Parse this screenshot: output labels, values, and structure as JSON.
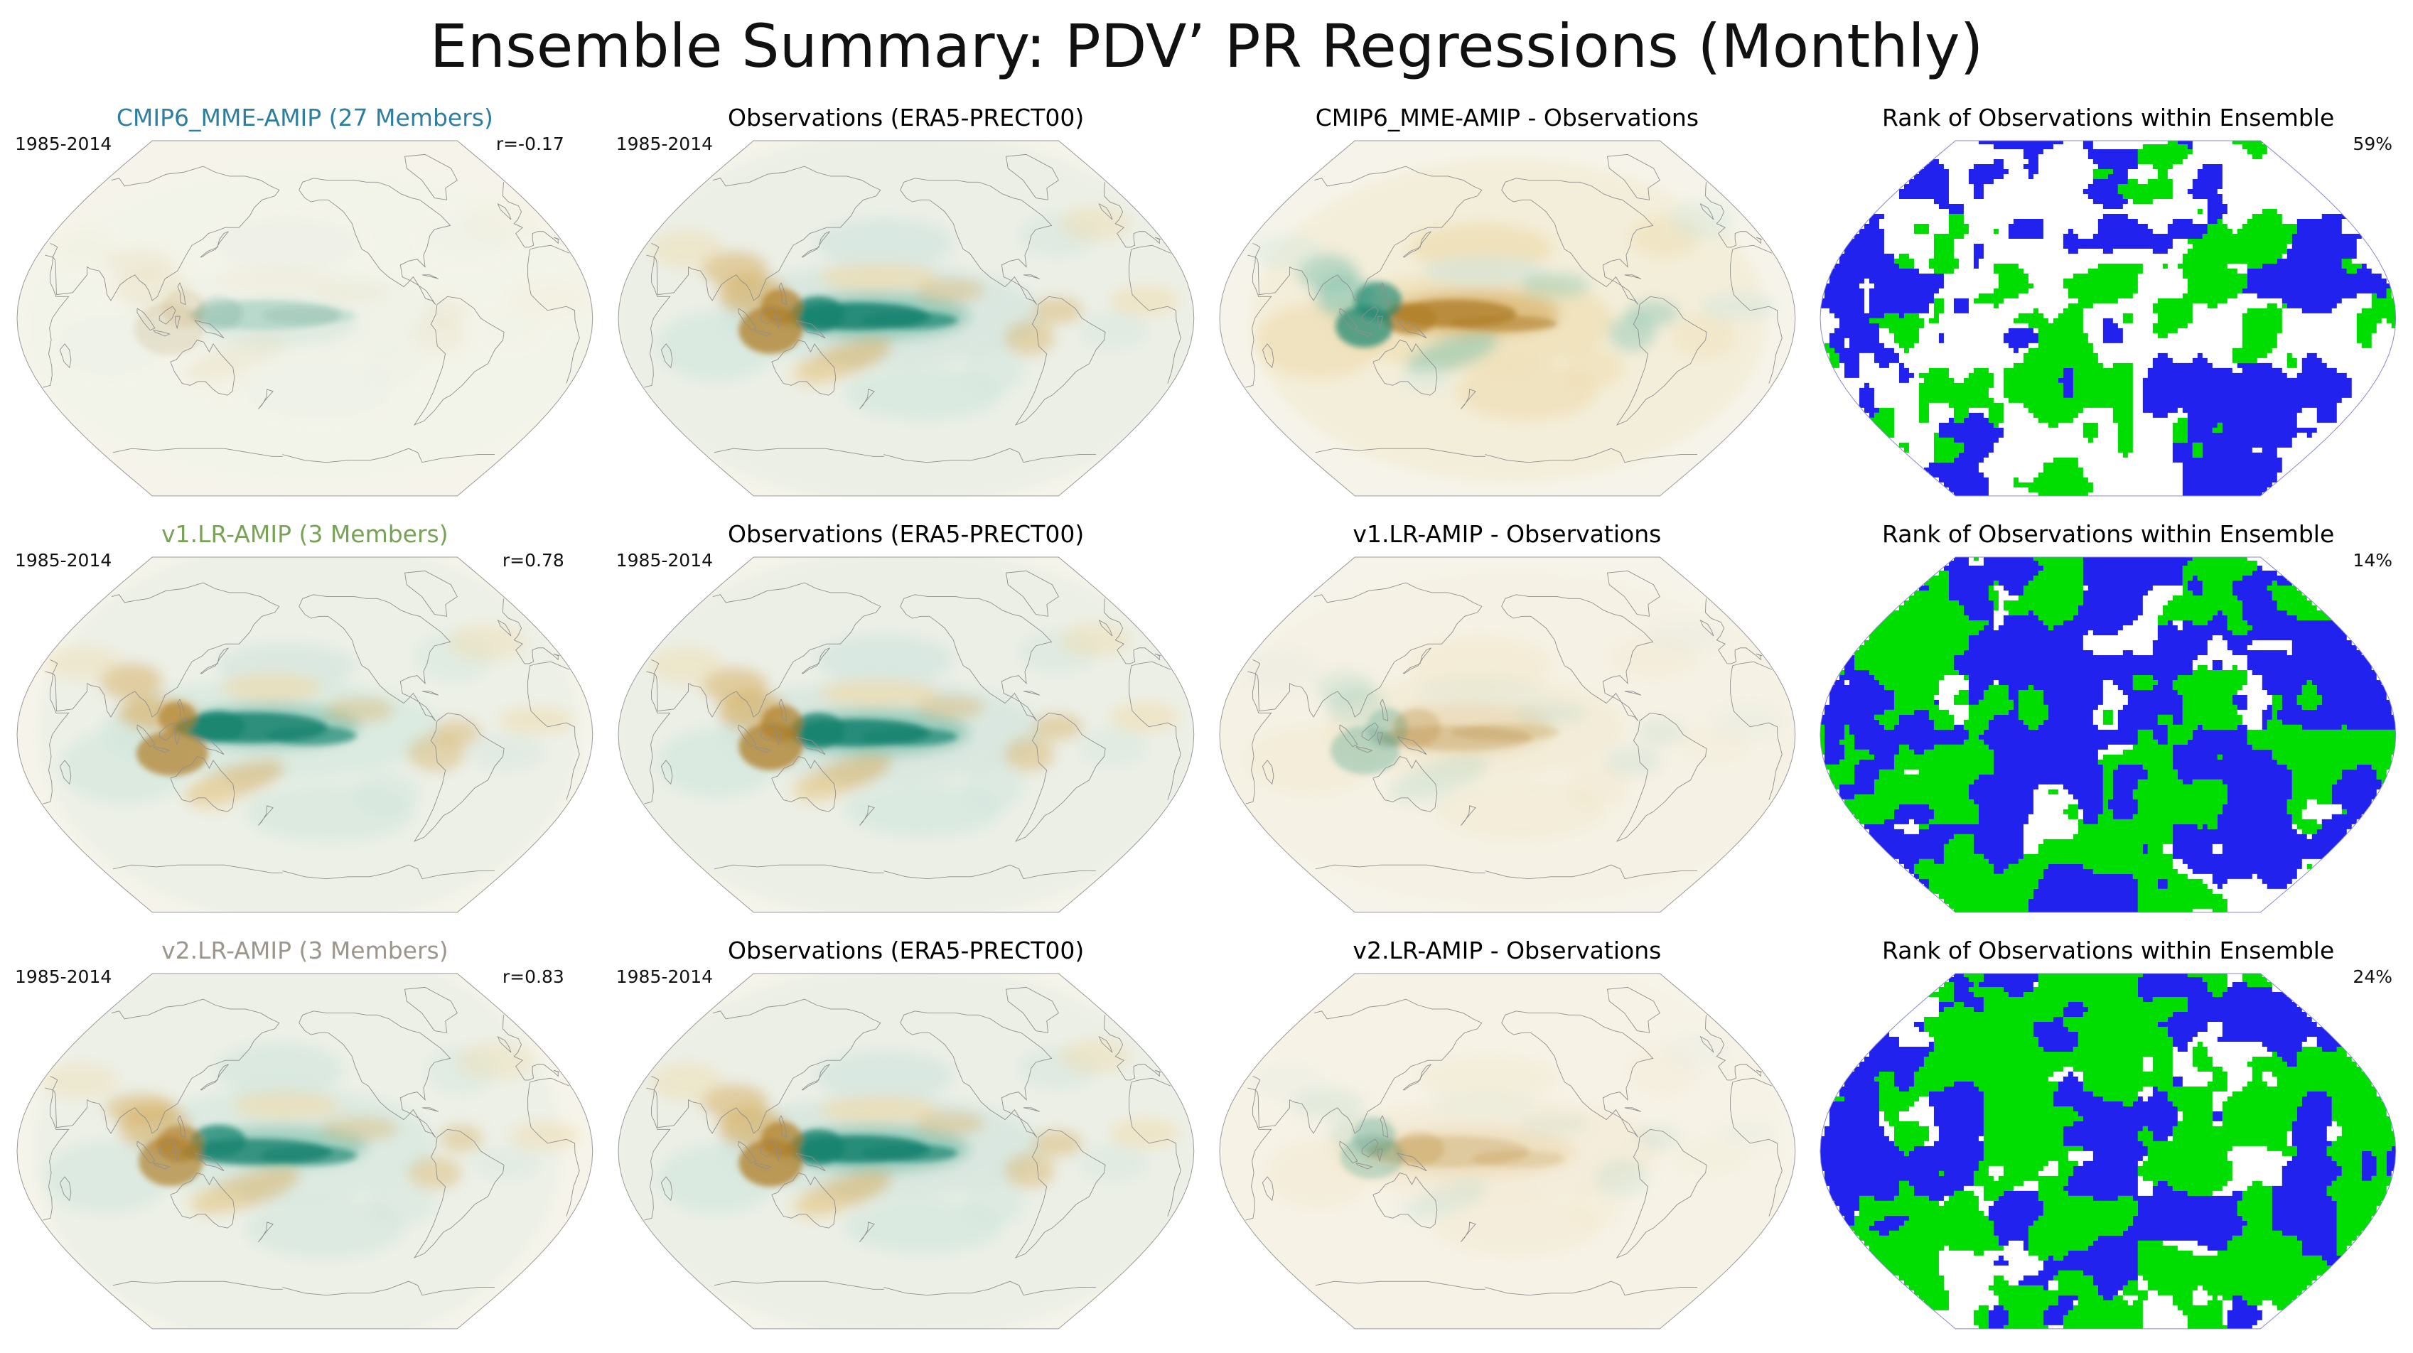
{
  "title": "Ensemble Summary: PDV’ PR Regressions (Monthly)",
  "colors": {
    "row_title_1": "#2e7f9f",
    "row_title_2": "#77a356",
    "row_title_3": "#9d968c",
    "map_bg": "#f6f4ea",
    "coast": "#8f8f8f",
    "teal_light": "#d3e6dd",
    "teal_mid": "#7fc1ae",
    "teal_dark": "#15836f",
    "tan_light": "#eedcae",
    "tan_mid": "#d6af62",
    "tan_dark": "#b07f2a",
    "rank_green": "#00dd00",
    "rank_blue": "#2222ee",
    "rank_outline": "#8888cc"
  },
  "rows": [
    {
      "panels": [
        {
          "title": "CMIP6_MME-AMIP (27 Members)",
          "period": "1985-2014",
          "stat": "r=-0.17",
          "render": {
            "style": "field",
            "amp": 0.2,
            "seed": 3
          }
        },
        {
          "title": "Observations (ERA5-PRECT00)",
          "period": "1985-2014",
          "render": {
            "style": "field",
            "amp": 1,
            "seed": 0
          }
        },
        {
          "title": "CMIP6_MME-AMIP - Observations",
          "render": {
            "style": "field",
            "amp": -0.9,
            "seed": 13
          }
        },
        {
          "title": "Rank of Observations within Ensemble",
          "percent": "59%",
          "render": {
            "style": "rank",
            "thr": 0.55,
            "bias": 0.95,
            "seed": 31
          }
        }
      ]
    },
    {
      "panels": [
        {
          "title": "v1.LR-AMIP (3 Members)",
          "period": "1985-2014",
          "stat": "r=0.78",
          "render": {
            "style": "field",
            "amp": 0.95,
            "seed": 5
          }
        },
        {
          "title": "Observations (ERA5-PRECT00)",
          "period": "1985-2014",
          "render": {
            "style": "field",
            "amp": 1,
            "seed": 0
          }
        },
        {
          "title": "v1.LR-AMIP - Observations",
          "render": {
            "style": "field",
            "amp": -0.32,
            "seed": 17
          }
        },
        {
          "title": "Rank of Observations within Ensemble",
          "percent": "14%",
          "render": {
            "style": "rank",
            "thr": 0.42,
            "bias": 1.03,
            "seed": 37
          }
        }
      ]
    },
    {
      "panels": [
        {
          "title": "v2.LR-AMIP (3 Members)",
          "period": "1985-2014",
          "stat": "r=0.83",
          "render": {
            "style": "field",
            "amp": 0.9,
            "seed": 9
          }
        },
        {
          "title": "Observations (ERA5-PRECT00)",
          "period": "1985-2014",
          "render": {
            "style": "field",
            "amp": 1,
            "seed": 0
          }
        },
        {
          "title": "v2.LR-AMIP - Observations",
          "render": {
            "style": "field",
            "amp": -0.28,
            "seed": 19
          }
        },
        {
          "title": "Rank of Observations within Ensemble",
          "percent": "24%",
          "render": {
            "style": "rank",
            "thr": 0.46,
            "bias": 1.12,
            "seed": 43
          }
        }
      ]
    }
  ],
  "chart_data": {
    "type": "heatmap",
    "title": "Ensemble Summary: PDV’ PR Regressions (Monthly)",
    "description": "4x3 grid of global Robinson-projection (Pacific-centered) map panels: column 1 = ensemble-mean PDV' precipitation regression per model, column 2 = observations, column 3 = model minus observations, column 4 = rank of observations within ensemble (green/blue significance patches).",
    "colormap": {
      "positive_anomaly": "teal/green",
      "negative_anomaly": "brown/tan",
      "rank_colors": [
        "green",
        "blue",
        "white"
      ]
    },
    "rows": [
      {
        "model": "CMIP6_MME-AMIP",
        "members": 27,
        "period": "1985-2014",
        "pattern_correlation_r": -0.17,
        "obs_dataset": "ERA5-PRECT00",
        "rank_percent": 59
      },
      {
        "model": "v1.LR-AMIP",
        "members": 3,
        "period": "1985-2014",
        "pattern_correlation_r": 0.78,
        "obs_dataset": "ERA5-PRECT00",
        "rank_percent": 14
      },
      {
        "model": "v2.LR-AMIP",
        "members": 3,
        "period": "1985-2014",
        "pattern_correlation_r": 0.83,
        "obs_dataset": "ERA5-PRECT00",
        "rank_percent": 24
      }
    ]
  }
}
